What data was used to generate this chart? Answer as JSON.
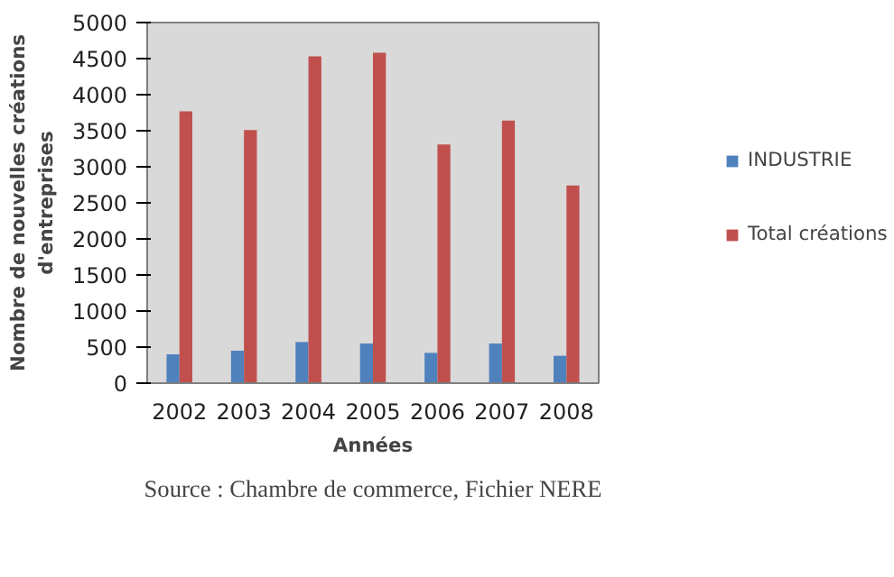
{
  "chart_data": {
    "type": "bar",
    "xlabel": "Années",
    "ylabel": "Nombre de nouvelles créations d'entreprises",
    "categories": [
      "2002",
      "2003",
      "2004",
      "2005",
      "2006",
      "2007",
      "2008"
    ],
    "series": [
      {
        "name": "INDUSTRIE",
        "color": "#4f81bd",
        "values": [
          400,
          450,
          570,
          550,
          420,
          550,
          380
        ]
      },
      {
        "name": "Total créations",
        "color": "#c0504d",
        "values": [
          3770,
          3510,
          4530,
          4580,
          3310,
          3640,
          2740
        ]
      }
    ],
    "ylim": [
      0,
      5000
    ],
    "yticks": [
      0,
      500,
      1000,
      1500,
      2000,
      2500,
      3000,
      3500,
      4000,
      4500,
      5000
    ],
    "grid": false,
    "legend": "right",
    "annotations": [
      "Source : Chambre de commerce, Fichier NERE"
    ]
  }
}
